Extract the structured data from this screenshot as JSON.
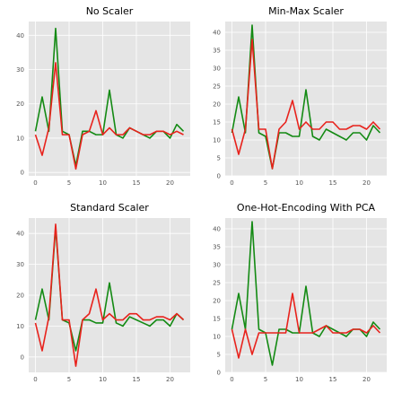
{
  "colors": {
    "green": "#138a13",
    "red": "#e8221c",
    "panel_bg": "#e5e5e5",
    "grid": "#ffffff"
  },
  "chart_data": [
    {
      "type": "line",
      "title": "No Scaler",
      "xlim": [
        -1,
        23
      ],
      "ylim": [
        -1,
        44
      ],
      "xticks": [
        0,
        5,
        10,
        15,
        20
      ],
      "yticks": [
        0,
        10,
        20,
        30,
        40
      ],
      "grid": true,
      "x": [
        0,
        1,
        2,
        3,
        4,
        5,
        6,
        7,
        8,
        9,
        10,
        11,
        12,
        13,
        14,
        15,
        16,
        17,
        18,
        19,
        20,
        21,
        22
      ],
      "series": [
        {
          "color": "#138a13",
          "values": [
            12,
            22,
            12,
            42,
            12,
            11,
            2,
            12,
            12,
            11,
            11,
            24,
            11,
            10,
            13,
            12,
            11,
            10,
            12,
            12,
            10,
            14,
            12
          ]
        },
        {
          "color": "#e8221c",
          "values": [
            11,
            5,
            13,
            32,
            11,
            11,
            1,
            11,
            12,
            18,
            11,
            13,
            11,
            11,
            13,
            12,
            11,
            11,
            12,
            12,
            11,
            12,
            11
          ]
        }
      ]
    },
    {
      "type": "line",
      "title": "Min-Max Scaler",
      "xlim": [
        -1,
        23
      ],
      "ylim": [
        0,
        43
      ],
      "xticks": [
        0,
        5,
        10,
        15,
        20
      ],
      "yticks": [
        0,
        5,
        10,
        15,
        20,
        25,
        30,
        35,
        40
      ],
      "grid": true,
      "x": [
        0,
        1,
        2,
        3,
        4,
        5,
        6,
        7,
        8,
        9,
        10,
        11,
        12,
        13,
        14,
        15,
        16,
        17,
        18,
        19,
        20,
        21,
        22
      ],
      "series": [
        {
          "color": "#138a13",
          "values": [
            12,
            22,
            12,
            42,
            12,
            11,
            2,
            12,
            12,
            11,
            11,
            24,
            11,
            10,
            13,
            12,
            11,
            10,
            12,
            12,
            10,
            14,
            12
          ]
        },
        {
          "color": "#e8221c",
          "values": [
            13,
            6,
            13,
            38,
            13,
            13,
            2,
            13,
            15,
            21,
            13,
            15,
            13,
            13,
            15,
            15,
            13,
            13,
            14,
            14,
            13,
            15,
            13
          ]
        }
      ]
    },
    {
      "type": "line",
      "title": "Standard Scaler",
      "xlim": [
        -1,
        23
      ],
      "ylim": [
        -5,
        45
      ],
      "xticks": [
        0,
        5,
        10,
        15,
        20
      ],
      "yticks": [
        0,
        10,
        20,
        30,
        40
      ],
      "grid": true,
      "x": [
        0,
        1,
        2,
        3,
        4,
        5,
        6,
        7,
        8,
        9,
        10,
        11,
        12,
        13,
        14,
        15,
        16,
        17,
        18,
        19,
        20,
        21,
        22
      ],
      "series": [
        {
          "color": "#138a13",
          "values": [
            12,
            22,
            12,
            42,
            12,
            11,
            2,
            12,
            12,
            11,
            11,
            24,
            11,
            10,
            13,
            12,
            11,
            10,
            12,
            12,
            10,
            14,
            12
          ]
        },
        {
          "color": "#e8221c",
          "values": [
            11,
            2,
            13,
            43,
            12,
            12,
            -3,
            12,
            14,
            22,
            12,
            14,
            12,
            12,
            14,
            14,
            12,
            12,
            13,
            13,
            12,
            14,
            12
          ]
        }
      ]
    },
    {
      "type": "line",
      "title": "One-Hot-Encoding With PCA",
      "xlim": [
        -1,
        23
      ],
      "ylim": [
        0,
        43
      ],
      "xticks": [
        0,
        5,
        10,
        15,
        20
      ],
      "yticks": [
        0,
        5,
        10,
        15,
        20,
        25,
        30,
        35,
        40
      ],
      "grid": true,
      "x": [
        0,
        1,
        2,
        3,
        4,
        5,
        6,
        7,
        8,
        9,
        10,
        11,
        12,
        13,
        14,
        15,
        16,
        17,
        18,
        19,
        20,
        21,
        22
      ],
      "series": [
        {
          "color": "#138a13",
          "values": [
            12,
            22,
            12,
            42,
            12,
            11,
            2,
            12,
            12,
            11,
            11,
            24,
            11,
            10,
            13,
            12,
            11,
            10,
            12,
            12,
            10,
            14,
            12
          ]
        },
        {
          "color": "#e8221c",
          "values": [
            12,
            4,
            12,
            5,
            11,
            11,
            11,
            11,
            11,
            22,
            11,
            11,
            11,
            12,
            13,
            11,
            11,
            11,
            12,
            12,
            11,
            13,
            11
          ]
        }
      ]
    }
  ]
}
